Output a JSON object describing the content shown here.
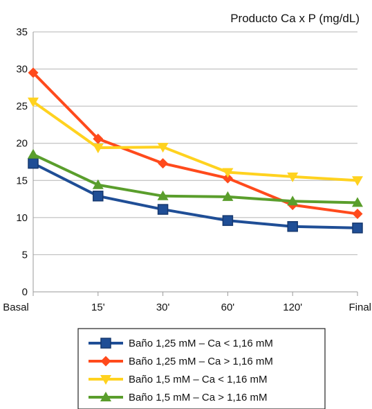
{
  "chart_data": {
    "type": "line",
    "title": "Producto Ca x P (mg/dL)",
    "xlabel": "",
    "ylabel": "",
    "categories": [
      "Basal",
      "15'",
      "30'",
      "60'",
      "120'",
      "Final"
    ],
    "ylim": [
      0,
      35
    ],
    "yticks": [
      "0",
      "5",
      "10",
      "15",
      "20",
      "25",
      "30",
      "35"
    ],
    "grid": true,
    "legend_position": "bottom",
    "series": [
      {
        "name": "Baño 1,25 mM – Ca < 1,16 mM",
        "color": "#1f4e96",
        "marker": "square",
        "values": [
          17.3,
          12.9,
          11.1,
          9.6,
          8.8,
          8.6
        ]
      },
      {
        "name": "Baño 1,25 mM – Ca > 1,16 mM",
        "color": "#ff4a1c",
        "marker": "diamond",
        "values": [
          29.5,
          20.6,
          17.3,
          15.3,
          11.7,
          10.5
        ]
      },
      {
        "name": "Baño 1,5 mM – Ca < 1,16 mM",
        "color": "#ffd21f",
        "marker": "triangle-down",
        "values": [
          25.6,
          19.4,
          19.5,
          16.1,
          15.5,
          15.0
        ]
      },
      {
        "name": "Baño 1,5 mM – Ca > 1,16 mM",
        "color": "#5a9e2c",
        "marker": "triangle-up",
        "values": [
          18.5,
          14.4,
          12.9,
          12.8,
          12.2,
          12.0
        ]
      }
    ]
  }
}
